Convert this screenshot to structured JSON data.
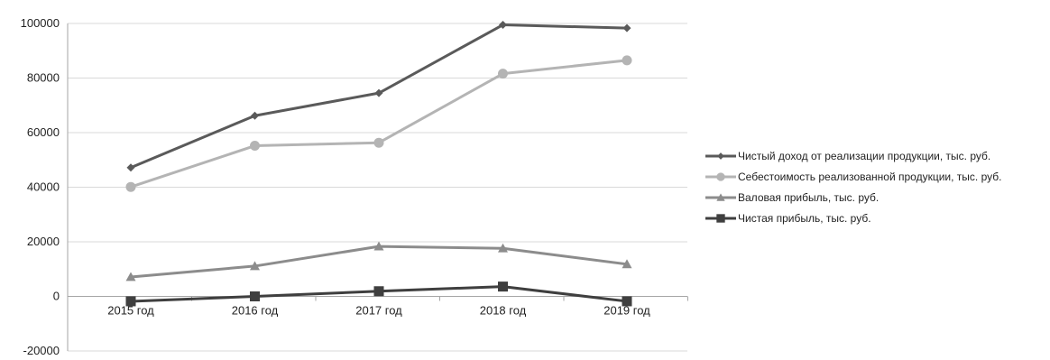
{
  "chart_data": {
    "type": "line",
    "title": "",
    "xlabel": "",
    "ylabel": "",
    "categories": [
      "2015 год",
      "2016 год",
      "2017 год",
      "2018 год",
      "2019 год"
    ],
    "ylim": [
      -20000,
      100000
    ],
    "yticks": [
      "100000",
      "80000",
      "60000",
      "40000",
      "20000",
      "0",
      "-20000"
    ],
    "grid": true,
    "legend_position": "right",
    "series": [
      {
        "name": "Чистый доход от реализации продукции, тыс. руб.",
        "values": [
          47200,
          66200,
          74500,
          99500,
          98300
        ],
        "color": "#5a5a5a",
        "marker": "diamond"
      },
      {
        "name": "Себестоимость реализованной продукции, тыс. руб.",
        "values": [
          40100,
          55200,
          56300,
          81600,
          86500
        ],
        "color": "#b4b4b4",
        "marker": "circle"
      },
      {
        "name": "Валовая прибыль, тыс. руб.",
        "values": [
          7100,
          11100,
          18300,
          17600,
          11800
        ],
        "color": "#8c8c8c",
        "marker": "triangle"
      },
      {
        "name": "Чистая прибыль, тыс. руб.",
        "values": [
          -1800,
          0,
          1900,
          3600,
          -1800
        ],
        "color": "#3f3f3f",
        "marker": "square"
      }
    ]
  }
}
